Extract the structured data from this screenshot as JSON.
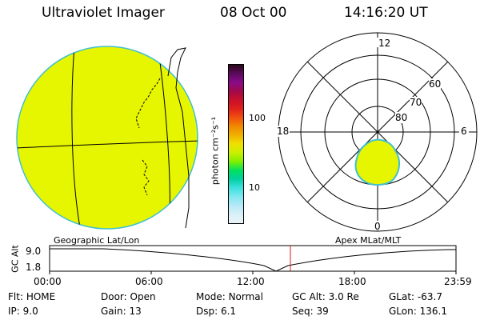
{
  "header": {
    "title": "Ultraviolet Imager",
    "date": "08 Oct 00",
    "time": "14:16:20 UT"
  },
  "colorbar": {
    "label": "photon cm⁻²s⁻¹",
    "ticks": [
      "100",
      "10"
    ],
    "colors": [
      "#2a0a1a",
      "#5a0a5a",
      "#8a0a8a",
      "#a00a4a",
      "#c8102a",
      "#e0201a",
      "#f05010",
      "#f08a00",
      "#f0b000",
      "#f0e000",
      "#c8f000",
      "#80f000",
      "#00e060",
      "#00d0a0",
      "#40e0e0",
      "#80e8f0",
      "#b8e8f8",
      "#d8f0f8",
      "#e8f4f8"
    ]
  },
  "left_map": {
    "caption": "Geographic Lat/Lon",
    "disk_color": "#e6f500"
  },
  "polar_plot": {
    "caption": "Apex MLat/MLT",
    "lat_labels": [
      "80",
      "70",
      "60"
    ],
    "mlt_labels": [
      "12",
      "18",
      "6",
      "0"
    ],
    "oval_color": "#e6f500"
  },
  "timeline": {
    "axis_label": "GC Alt",
    "y_ticks": [
      "9.0",
      "1.8"
    ],
    "x_ticks": [
      "00:00",
      "06:00",
      "12:00",
      "18:00",
      "23:59"
    ]
  },
  "status": {
    "row1": [
      {
        "label": "Flt:",
        "value": "HOME"
      },
      {
        "label": "Door:",
        "value": "Open"
      },
      {
        "label": "Mode:",
        "value": "Normal"
      },
      {
        "label": "GC Alt:",
        "value": "3.0 Re"
      },
      {
        "label": "GLat:",
        "value": "-63.7"
      }
    ],
    "row2": [
      {
        "label": "IP:",
        "value": "9.0"
      },
      {
        "label": "Gain:",
        "value": "13"
      },
      {
        "label": "Dsp:",
        "value": "6.1"
      },
      {
        "label": "Seq:",
        "value": "39"
      },
      {
        "label": "GLon:",
        "value": "136.1"
      }
    ]
  }
}
